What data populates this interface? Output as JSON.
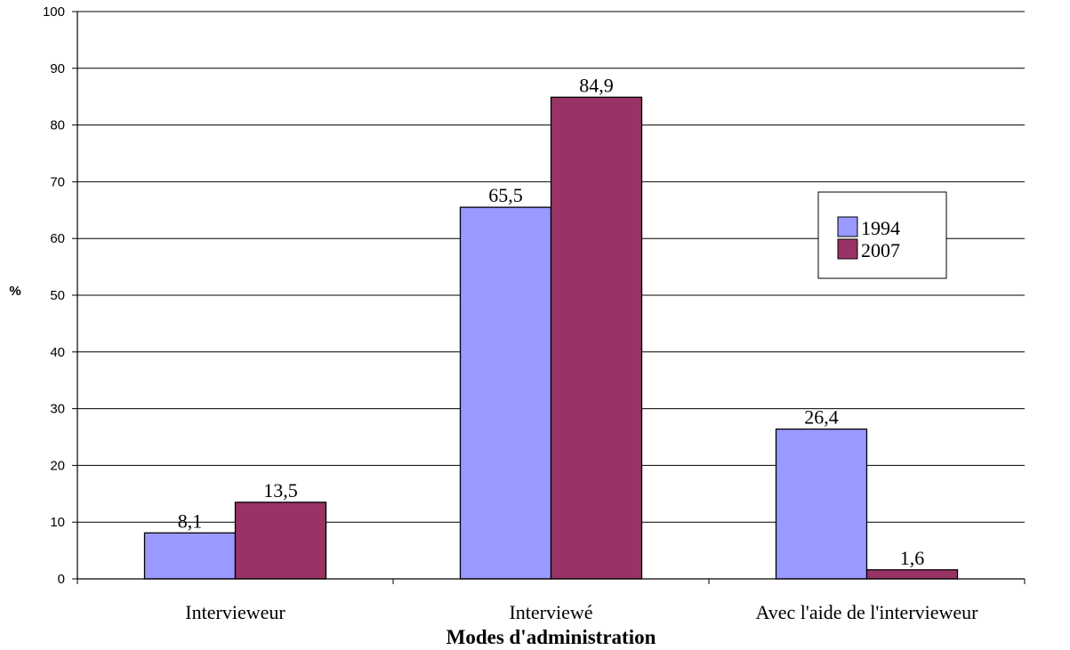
{
  "chart_data": {
    "type": "bar",
    "title": "",
    "xlabel": "Modes d'administration",
    "ylabel": "%",
    "ylim": [
      0,
      100
    ],
    "yticks": [
      0,
      10,
      20,
      30,
      40,
      50,
      60,
      70,
      80,
      90,
      100
    ],
    "grid": true,
    "legend_position": "right",
    "categories": [
      "Intervieweur",
      "Interviewé",
      "Avec l'aide de l'intervieweur"
    ],
    "series": [
      {
        "name": "1994",
        "color": "#9999ff",
        "values": [
          8.1,
          65.5,
          26.4
        ],
        "labels": [
          "8,1",
          "65,5",
          "26,4"
        ]
      },
      {
        "name": "2007",
        "color": "#993366",
        "values": [
          13.5,
          84.9,
          1.6
        ],
        "labels": [
          "13,5",
          "84,9",
          "1,6"
        ]
      }
    ]
  }
}
